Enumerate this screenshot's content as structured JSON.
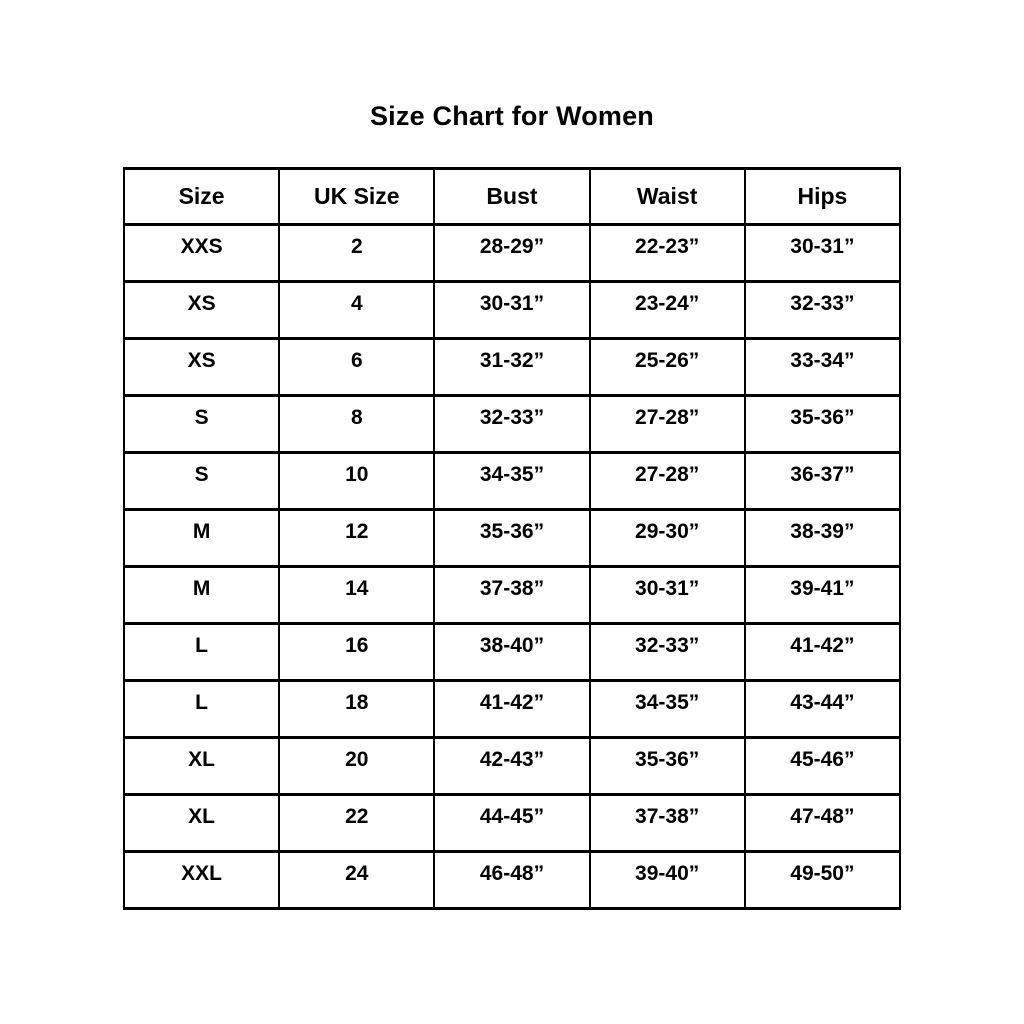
{
  "page": {
    "background_color": "#ffffff",
    "text_color": "#000000",
    "border_color": "#000000"
  },
  "chart_data": {
    "type": "table",
    "title": "Size Chart for Women",
    "columns": [
      "Size",
      "UK Size",
      "Bust",
      "Waist",
      "Hips"
    ],
    "rows": [
      [
        "XXS",
        "2",
        "28-29”",
        "22-23”",
        "30-31”"
      ],
      [
        "XS",
        "4",
        "30-31”",
        "23-24”",
        "32-33”"
      ],
      [
        "XS",
        "6",
        "31-32”",
        "25-26”",
        "33-34”"
      ],
      [
        "S",
        "8",
        "32-33”",
        "27-28”",
        "35-36”"
      ],
      [
        "S",
        "10",
        "34-35”",
        "27-28”",
        "36-37”"
      ],
      [
        "M",
        "12",
        "35-36”",
        "29-30”",
        "38-39”"
      ],
      [
        "M",
        "14",
        "37-38”",
        "30-31”",
        "39-41”"
      ],
      [
        "L",
        "16",
        "38-40”",
        "32-33”",
        "41-42”"
      ],
      [
        "L",
        "18",
        "41-42”",
        "34-35”",
        "43-44”"
      ],
      [
        "XL",
        "20",
        "42-43”",
        "35-36”",
        "45-46”"
      ],
      [
        "XL",
        "22",
        "44-45”",
        "37-38”",
        "47-48”"
      ],
      [
        "XXL",
        "24",
        "46-48”",
        "39-40”",
        "49-50”"
      ]
    ],
    "layout": {
      "grid": "on",
      "header_row": true,
      "column_count": 5,
      "row_count": 12
    }
  }
}
